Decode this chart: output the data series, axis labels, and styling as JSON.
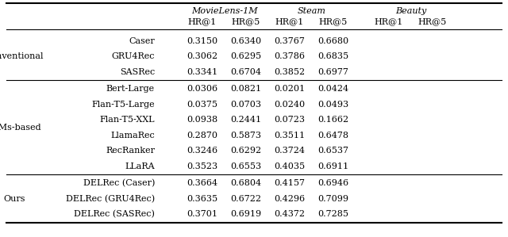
{
  "dataset_headers": [
    "MovieLens-1M",
    "Steam",
    "Beauty"
  ],
  "metric_headers": [
    "HR@1",
    "HR@5",
    "HR@1",
    "HR@5",
    "HR@1",
    "HR@5"
  ],
  "groups": [
    {
      "group_label": "Conventional",
      "models": [
        "Caser",
        "GRU4Rec",
        "SASRec"
      ],
      "values": [
        [
          "0.3150",
          "0.6340",
          "0.3767",
          "0.6680",
          "",
          ""
        ],
        [
          "0.3062",
          "0.6295",
          "0.3786",
          "0.6835",
          "",
          ""
        ],
        [
          "0.3341",
          "0.6704",
          "0.3852",
          "0.6977",
          "",
          ""
        ]
      ]
    },
    {
      "group_label": "LLMs-based",
      "models": [
        "Bert-Large",
        "Flan-T5-Large",
        "Flan-T5-XXL",
        "LlamaRec",
        "RecRanker",
        "LLaRA"
      ],
      "values": [
        [
          "0.0306",
          "0.0821",
          "0.0201",
          "0.0424",
          "",
          ""
        ],
        [
          "0.0375",
          "0.0703",
          "0.0240",
          "0.0493",
          "",
          ""
        ],
        [
          "0.0938",
          "0.2441",
          "0.0723",
          "0.1662",
          "",
          ""
        ],
        [
          "0.2870",
          "0.5873",
          "0.3511",
          "0.6478",
          "",
          ""
        ],
        [
          "0.3246",
          "0.6292",
          "0.3724",
          "0.6537",
          "",
          ""
        ],
        [
          "0.3523",
          "0.6553",
          "0.4035",
          "0.6911",
          "",
          ""
        ]
      ]
    },
    {
      "group_label": "Ours",
      "models": [
        "DELRec (Caser)",
        "DELRec (GRU4Rec)",
        "DELRec (SASRec)"
      ],
      "values": [
        [
          "0.3664",
          "0.6804",
          "0.4157",
          "0.6946",
          "",
          ""
        ],
        [
          "0.3635",
          "0.6722",
          "0.4296",
          "0.7099",
          "",
          ""
        ],
        [
          "0.3701",
          "0.6919",
          "0.4372",
          "0.7285",
          "",
          ""
        ]
      ]
    }
  ],
  "bg_color": "#ffffff",
  "font_size": 8.0,
  "header_font_size": 8.0
}
